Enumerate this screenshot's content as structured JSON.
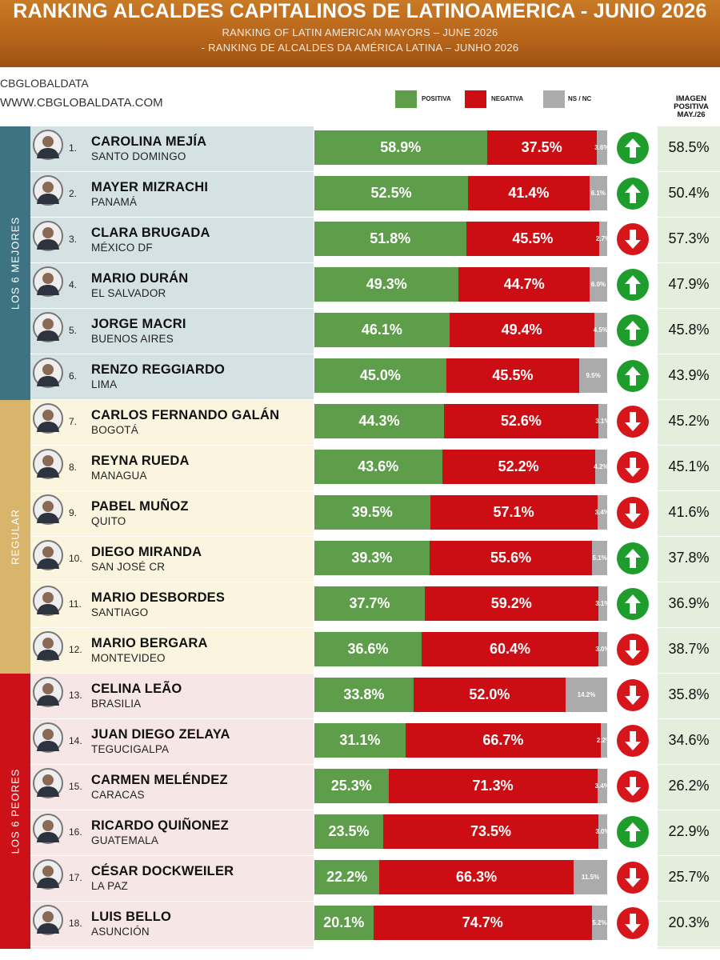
{
  "header": {
    "title": "RANKING ALCALDES CAPITALINOS DE LATINOAMERICA - JUNIO 2026",
    "subtitle_en": "RANKING OF LATIN AMERICAN MAYORS – JUNE 2026",
    "subtitle_pt": "- RANKING DE ALCALDES DA AMÉRICA LATINA – JUNHO 2026"
  },
  "brand": {
    "name": "CBGLOBALDATA",
    "url": "WWW.CBGLOBALDATA.COM"
  },
  "legend": [
    {
      "label": "POSITIVA",
      "color": "#5e9e4a"
    },
    {
      "label": "NEGATIVA",
      "color": "#cc0e14"
    },
    {
      "label": "NS / NC",
      "color": "#ababab"
    }
  ],
  "imagen_header": "IMAGEN POSITIVA MAY./26",
  "colors": {
    "header": "#b5631a",
    "positive": "#5e9e4a",
    "negative": "#cc0e14",
    "nsnc": "#ababab",
    "up_arrow": "#1f9d2c",
    "down_arrow": "#d6161b"
  },
  "sections": [
    {
      "label": "LOS 6 MEJORES",
      "rows": [
        1,
        6
      ],
      "band_color": "#3d7383",
      "bg_color": "#d5e2e4"
    },
    {
      "label": "REGULAR",
      "rows": [
        7,
        12
      ],
      "band_color": "#d9b56b",
      "bg_color": "#fbf5df"
    },
    {
      "label": "LOS 6 PEORES",
      "rows": [
        13,
        18
      ],
      "band_color": "#cc1118",
      "bg_color": "#f7e6e6"
    }
  ],
  "chart_data": {
    "type": "bar",
    "stacked": true,
    "categories": [
      "CAROLINA MEJÍA",
      "MAYER MIZRACHI",
      "CLARA BRUGADA",
      "MARIO DURÁN",
      "JORGE MACRI",
      "RENZO REGGIARDO",
      "CARLOS FERNANDO GALÁN",
      "REYNA RUEDA",
      "PABEL MUÑOZ",
      "DIEGO MIRANDA",
      "MARIO DESBORDES",
      "MARIO BERGARA",
      "CELINA LEÃO",
      "JUAN DIEGO ZELAYA",
      "CARMEN MELÉNDEZ",
      "RICARDO QUIÑONEZ",
      "CÉSAR DOCKWEILER",
      "LUIS BELLO"
    ],
    "series": [
      {
        "name": "POSITIVA",
        "values": [
          58.9,
          52.5,
          51.8,
          49.3,
          46.1,
          45.0,
          44.3,
          43.6,
          39.5,
          39.3,
          37.7,
          36.6,
          33.8,
          31.1,
          25.3,
          23.5,
          22.2,
          20.1
        ]
      },
      {
        "name": "NEGATIVA",
        "values": [
          37.5,
          41.4,
          45.5,
          44.7,
          49.4,
          45.5,
          52.6,
          52.2,
          57.1,
          55.6,
          59.2,
          60.4,
          52.0,
          66.7,
          71.3,
          73.5,
          66.3,
          74.7
        ]
      },
      {
        "name": "NS / NC",
        "values": [
          3.6,
          6.1,
          2.7,
          6.0,
          4.5,
          9.5,
          3.1,
          4.2,
          3.4,
          5.1,
          3.1,
          3.0,
          14.2,
          2.2,
          3.4,
          3.0,
          11.5,
          5.2
        ]
      }
    ],
    "rows": [
      {
        "rank": "1.",
        "name": "CAROLINA MEJÍA",
        "city": "SANTO DOMINGO",
        "pos": "58.9%",
        "neg": "37.5%",
        "ns": "3.6%",
        "trend": "up",
        "prev": "58.5%"
      },
      {
        "rank": "2.",
        "name": "MAYER MIZRACHI",
        "city": "PANAMÁ",
        "pos": "52.5%",
        "neg": "41.4%",
        "ns": "6.1%",
        "trend": "up",
        "prev": "50.4%"
      },
      {
        "rank": "3.",
        "name": "CLARA BRUGADA",
        "city": "MÉXICO DF",
        "pos": "51.8%",
        "neg": "45.5%",
        "ns": "2.7%",
        "trend": "down",
        "prev": "57.3%"
      },
      {
        "rank": "4.",
        "name": "MARIO DURÁN",
        "city": "EL SALVADOR",
        "pos": "49.3%",
        "neg": "44.7%",
        "ns": "6.0%",
        "trend": "up",
        "prev": "47.9%"
      },
      {
        "rank": "5.",
        "name": "JORGE MACRI",
        "city": "BUENOS AIRES",
        "pos": "46.1%",
        "neg": "49.4%",
        "ns": "4.5%",
        "trend": "up",
        "prev": "45.8%"
      },
      {
        "rank": "6.",
        "name": "RENZO REGGIARDO",
        "city": "LIMA",
        "pos": "45.0%",
        "neg": "45.5%",
        "ns": "9.5%",
        "trend": "up",
        "prev": "43.9%"
      },
      {
        "rank": "7.",
        "name": "CARLOS FERNANDO GALÁN",
        "city": "BOGOTÁ",
        "pos": "44.3%",
        "neg": "52.6%",
        "ns": "3.1%",
        "trend": "down",
        "prev": "45.2%"
      },
      {
        "rank": "8.",
        "name": "REYNA RUEDA",
        "city": "MANAGUA",
        "pos": "43.6%",
        "neg": "52.2%",
        "ns": "4.2%",
        "trend": "down",
        "prev": "45.1%"
      },
      {
        "rank": "9.",
        "name": "PABEL MUÑOZ",
        "city": "QUITO",
        "pos": "39.5%",
        "neg": "57.1%",
        "ns": "3.4%",
        "trend": "down",
        "prev": "41.6%"
      },
      {
        "rank": "10.",
        "name": "DIEGO MIRANDA",
        "city": "SAN JOSÉ CR",
        "pos": "39.3%",
        "neg": "55.6%",
        "ns": "5.1%",
        "trend": "up",
        "prev": "37.8%"
      },
      {
        "rank": "11.",
        "name": "MARIO DESBORDES",
        "city": "SANTIAGO",
        "pos": "37.7%",
        "neg": "59.2%",
        "ns": "3.1%",
        "trend": "up",
        "prev": "36.9%"
      },
      {
        "rank": "12.",
        "name": "MARIO BERGARA",
        "city": "MONTEVIDEO",
        "pos": "36.6%",
        "neg": "60.4%",
        "ns": "3.0%",
        "trend": "down",
        "prev": "38.7%"
      },
      {
        "rank": "13.",
        "name": "CELINA LEÃO",
        "city": "BRASILIA",
        "pos": "33.8%",
        "neg": "52.0%",
        "ns": "14.2%",
        "trend": "down",
        "prev": "35.8%"
      },
      {
        "rank": "14.",
        "name": "JUAN DIEGO ZELAYA",
        "city": "TEGUCIGALPA",
        "pos": "31.1%",
        "neg": "66.7%",
        "ns": "2.2%",
        "trend": "down",
        "prev": "34.6%"
      },
      {
        "rank": "15.",
        "name": "CARMEN MELÉNDEZ",
        "city": "CARACAS",
        "pos": "25.3%",
        "neg": "71.3%",
        "ns": "3.4%",
        "trend": "down",
        "prev": "26.2%"
      },
      {
        "rank": "16.",
        "name": "RICARDO QUIÑONEZ",
        "city": "GUATEMALA",
        "pos": "23.5%",
        "neg": "73.5%",
        "ns": "3.0%",
        "trend": "up",
        "prev": "22.9%"
      },
      {
        "rank": "17.",
        "name": "CÉSAR DOCKWEILER",
        "city": "LA PAZ",
        "pos": "22.2%",
        "neg": "66.3%",
        "ns": "11.5%",
        "trend": "down",
        "prev": "25.7%"
      },
      {
        "rank": "18.",
        "name": "LUIS BELLO",
        "city": "ASUNCIÓN",
        "pos": "20.1%",
        "neg": "74.7%",
        "ns": "5.2%",
        "trend": "down",
        "prev": "20.3%"
      }
    ]
  }
}
